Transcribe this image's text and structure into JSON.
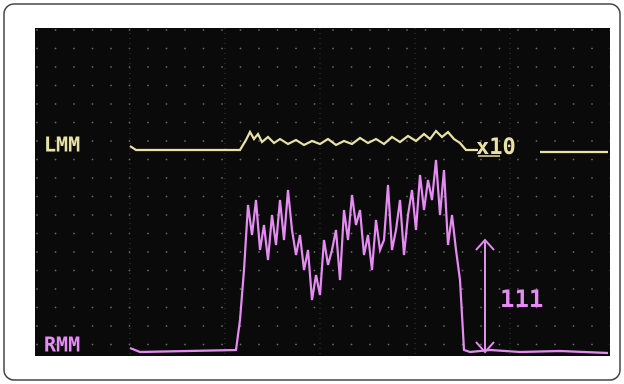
{
  "traces": [
    {
      "label": "LMM"
    },
    {
      "label": "RMM"
    }
  ],
  "gain_label": "x10",
  "amplitude_label": "111"
}
